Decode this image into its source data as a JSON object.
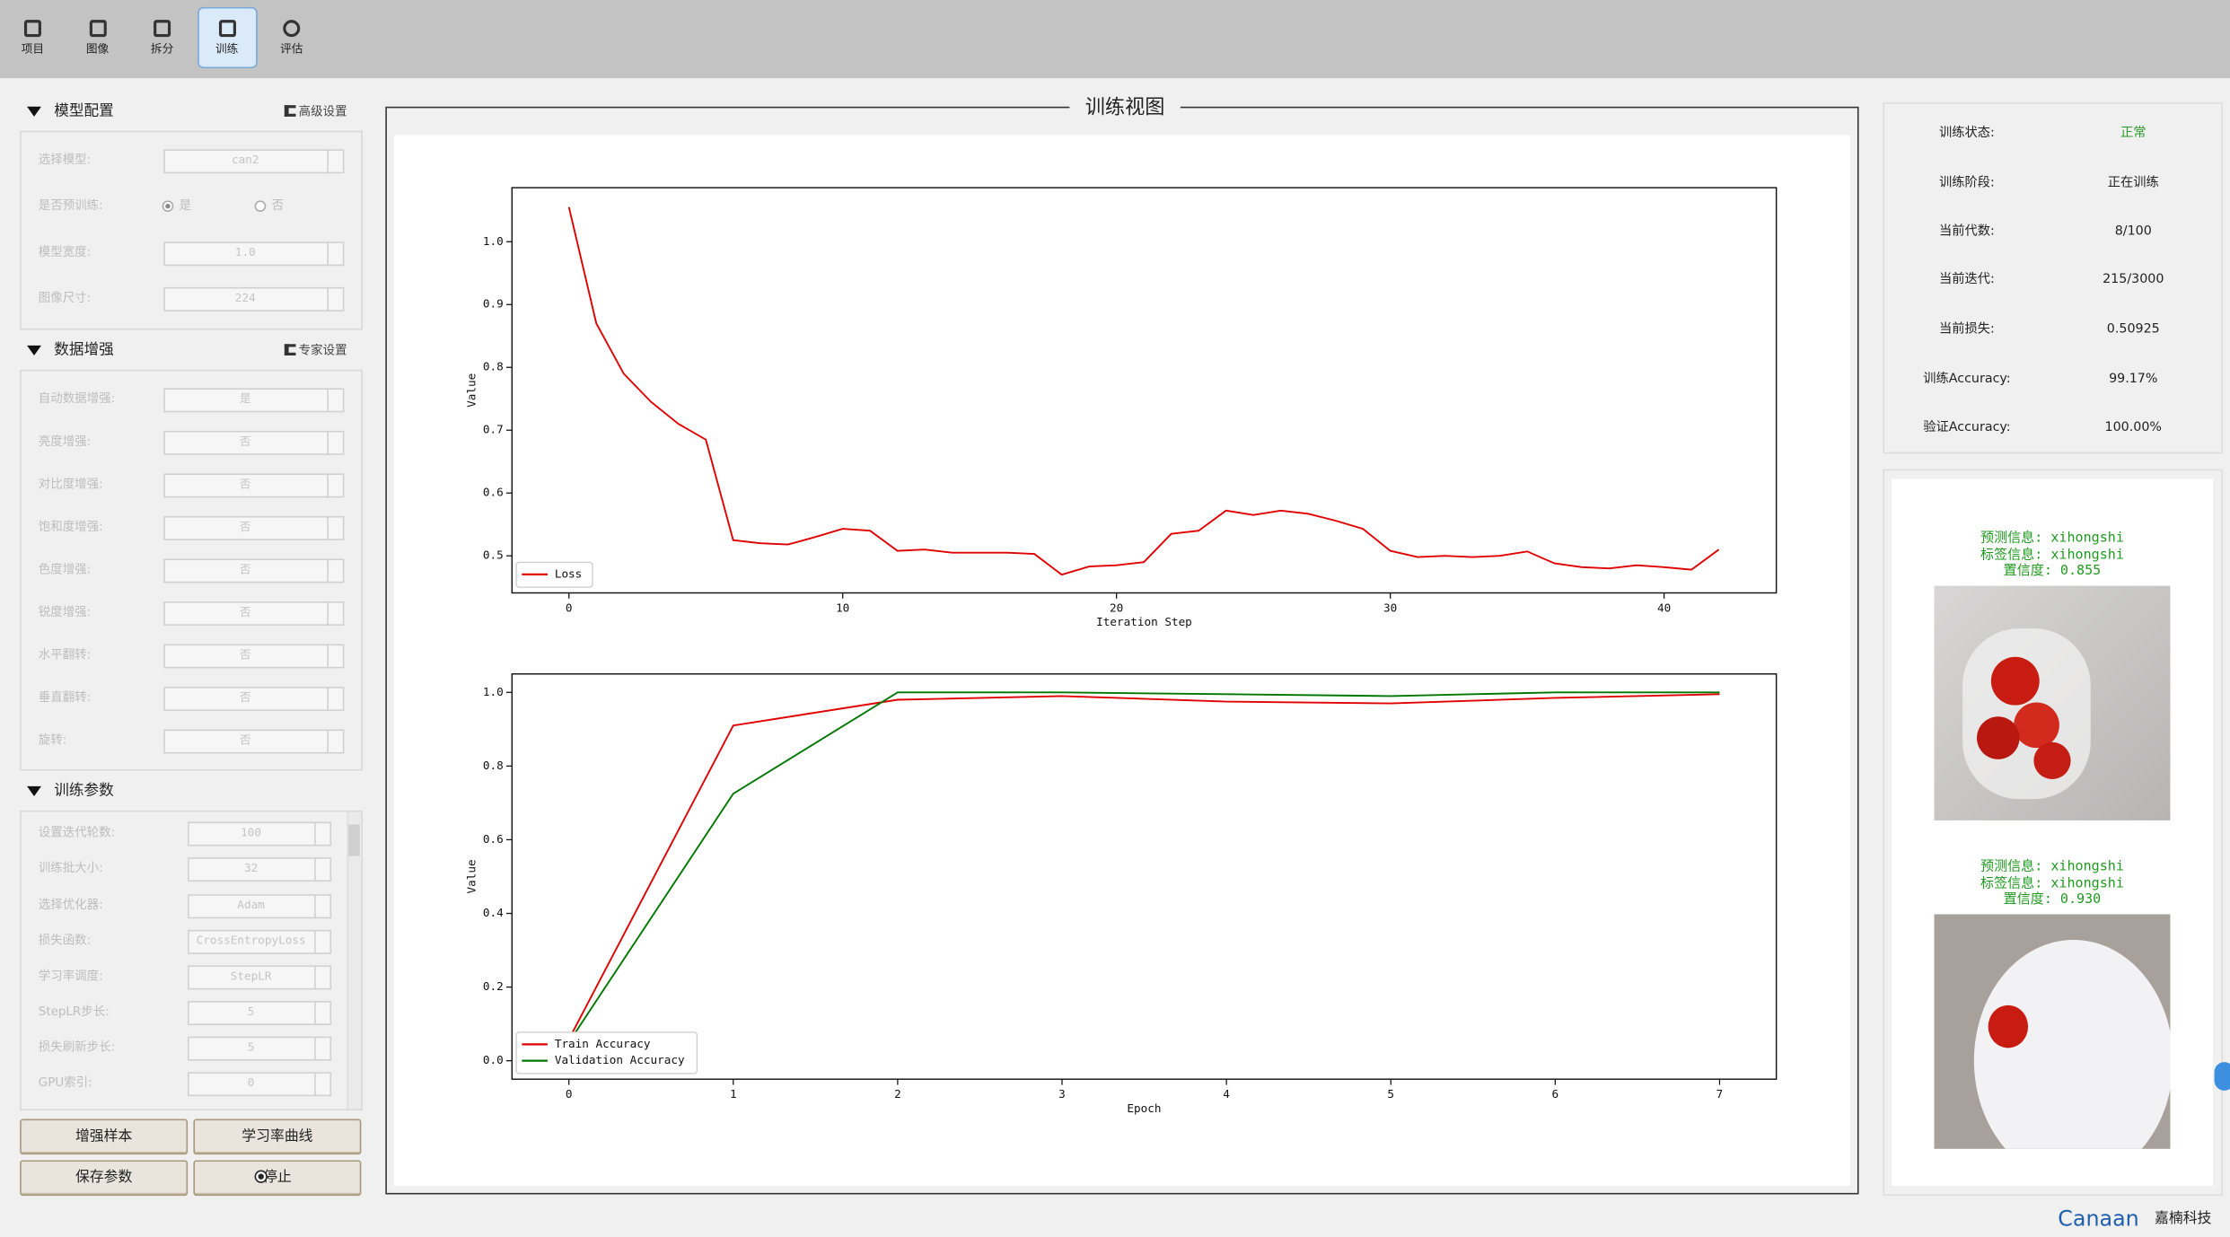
{
  "toolbar": {
    "items": [
      "项目",
      "图像",
      "拆分",
      "训练",
      "评估"
    ],
    "active": 3
  },
  "model_config": {
    "title": "模型配置",
    "link": "高级设置",
    "rows": [
      {
        "label": "选择模型:",
        "value": "can2"
      },
      {
        "label": "是否预训练:",
        "options": [
          "是",
          "否"
        ],
        "selected": 0
      },
      {
        "label": "模型宽度:",
        "value": "1.0"
      },
      {
        "label": "图像尺寸:",
        "value": "224"
      }
    ]
  },
  "augmentation": {
    "title": "数据增强",
    "link": "专家设置",
    "rows": [
      {
        "label": "自动数据增强:",
        "value": "是"
      },
      {
        "label": "亮度增强:",
        "value": "否"
      },
      {
        "label": "对比度增强:",
        "value": "否"
      },
      {
        "label": "饱和度增强:",
        "value": "否"
      },
      {
        "label": "色度增强:",
        "value": "否"
      },
      {
        "label": "锐度增强:",
        "value": "否"
      },
      {
        "label": "水平翻转:",
        "value": "否"
      },
      {
        "label": "垂直翻转:",
        "value": "否"
      },
      {
        "label": "旋转:",
        "value": "否"
      }
    ]
  },
  "train_params": {
    "title": "训练参数",
    "rows": [
      {
        "label": "设置迭代轮数:",
        "value": "100"
      },
      {
        "label": "训练批大小:",
        "value": "32"
      },
      {
        "label": "选择优化器:",
        "value": "Adam"
      },
      {
        "label": "损失函数:",
        "value": "CrossEntropyLoss"
      },
      {
        "label": "学习率调度:",
        "value": "StepLR"
      },
      {
        "label": "StepLR步长:",
        "value": "5"
      },
      {
        "label": "损失刷新步长:",
        "value": "5"
      },
      {
        "label": "GPU索引:",
        "value": "0"
      }
    ]
  },
  "buttons": [
    "增强样本",
    "学习率曲线",
    "保存参数",
    "停止"
  ],
  "view_title": "训练视图",
  "chart_data": [
    {
      "type": "line",
      "xlabel": "Iteration Step",
      "ylabel": "Value",
      "x": [
        0,
        1,
        2,
        3,
        4,
        5,
        6,
        7,
        8,
        9,
        10,
        11,
        12,
        13,
        14,
        15,
        16,
        17,
        18,
        19,
        20,
        21,
        22,
        23,
        24,
        25,
        26,
        27,
        28,
        29,
        30,
        31,
        32,
        33,
        34,
        35,
        36,
        37,
        38,
        39,
        40,
        41,
        42
      ],
      "series": [
        {
          "name": "Loss",
          "color": "#e00000",
          "values": [
            1.055,
            0.87,
            0.79,
            0.745,
            0.71,
            0.685,
            0.525,
            0.52,
            0.518,
            0.53,
            0.543,
            0.54,
            0.508,
            0.51,
            0.505,
            0.505,
            0.505,
            0.503,
            0.47,
            0.483,
            0.485,
            0.49,
            0.535,
            0.54,
            0.572,
            0.565,
            0.572,
            0.567,
            0.556,
            0.543,
            0.508,
            0.498,
            0.5,
            0.498,
            0.5,
            0.507,
            0.488,
            0.482,
            0.48,
            0.485,
            0.482,
            0.478,
            0.51
          ]
        }
      ],
      "xlim": [
        -2.08,
        44.1
      ],
      "ylim": [
        0.441,
        1.086
      ],
      "xticks": [
        0,
        10,
        20,
        30,
        40
      ],
      "yticks": [
        0.5,
        0.6,
        0.7,
        0.8,
        0.9,
        {
          "value": 1,
          "label": "1.0"
        }
      ],
      "legend": "lower left"
    },
    {
      "type": "line",
      "xlabel": "Epoch",
      "ylabel": "Value",
      "x": [
        0,
        1,
        2,
        3,
        4,
        5,
        6,
        7
      ],
      "series": [
        {
          "name": "Train Accuracy",
          "color": "#e00000",
          "values": [
            0.058,
            0.91,
            0.98,
            0.99,
            0.975,
            0.97,
            0.985,
            0.995
          ]
        },
        {
          "name": "Validation Accuracy",
          "color": "#007800",
          "values": [
            0.05,
            0.725,
            1.0,
            1.0,
            0.995,
            0.99,
            1.0,
            1.0
          ]
        }
      ],
      "xlim": [
        -0.346,
        7.345
      ],
      "ylim": [
        -0.05,
        1.05
      ],
      "xticks": [
        0,
        1,
        2,
        3,
        4,
        5,
        6,
        7
      ],
      "yticks": [
        {
          "value": 0,
          "label": "0.0"
        },
        0.2,
        0.4,
        0.6,
        0.8,
        {
          "value": 1,
          "label": "1.0"
        }
      ],
      "legend": "lower left"
    }
  ],
  "status": [
    {
      "label": "训练状态:",
      "value": "正常",
      "color": "#2a9a2a"
    },
    {
      "label": "训练阶段:",
      "value": "正在训练"
    },
    {
      "label": "当前代数:",
      "value": "8/100"
    },
    {
      "label": "当前迭代:",
      "value": "215/3000"
    },
    {
      "label": "当前损失:",
      "value": "0.50925"
    },
    {
      "label": "训练Accuracy:",
      "value": "99.17%"
    },
    {
      "label": "验证Accuracy:",
      "value": "100.00%"
    }
  ],
  "predictions": [
    {
      "pred": "预测信息: xihongshi",
      "label": "标签信息: xihongshi",
      "confidence": "置信度: 0.855"
    },
    {
      "pred": "预测信息: xihongshi",
      "label": "标签信息: xihongshi",
      "confidence": "置信度: 0.930"
    }
  ],
  "footer": {
    "brand": "Canaan",
    "brand_cn": "嘉楠科技"
  }
}
